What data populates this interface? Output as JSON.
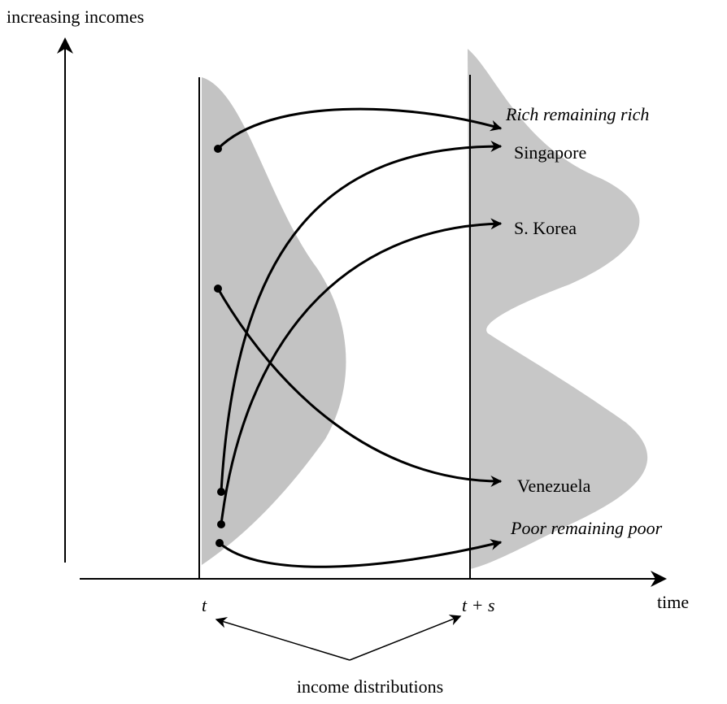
{
  "axes": {
    "y_label": "increasing incomes",
    "x_label": "time",
    "t_start": "t",
    "t_end": "t + s"
  },
  "outcomes": [
    "Rich remaining rich",
    "Singapore",
    "S. Korea",
    "Venezuela",
    "Poor remaining poor"
  ],
  "note": "income distributions"
}
